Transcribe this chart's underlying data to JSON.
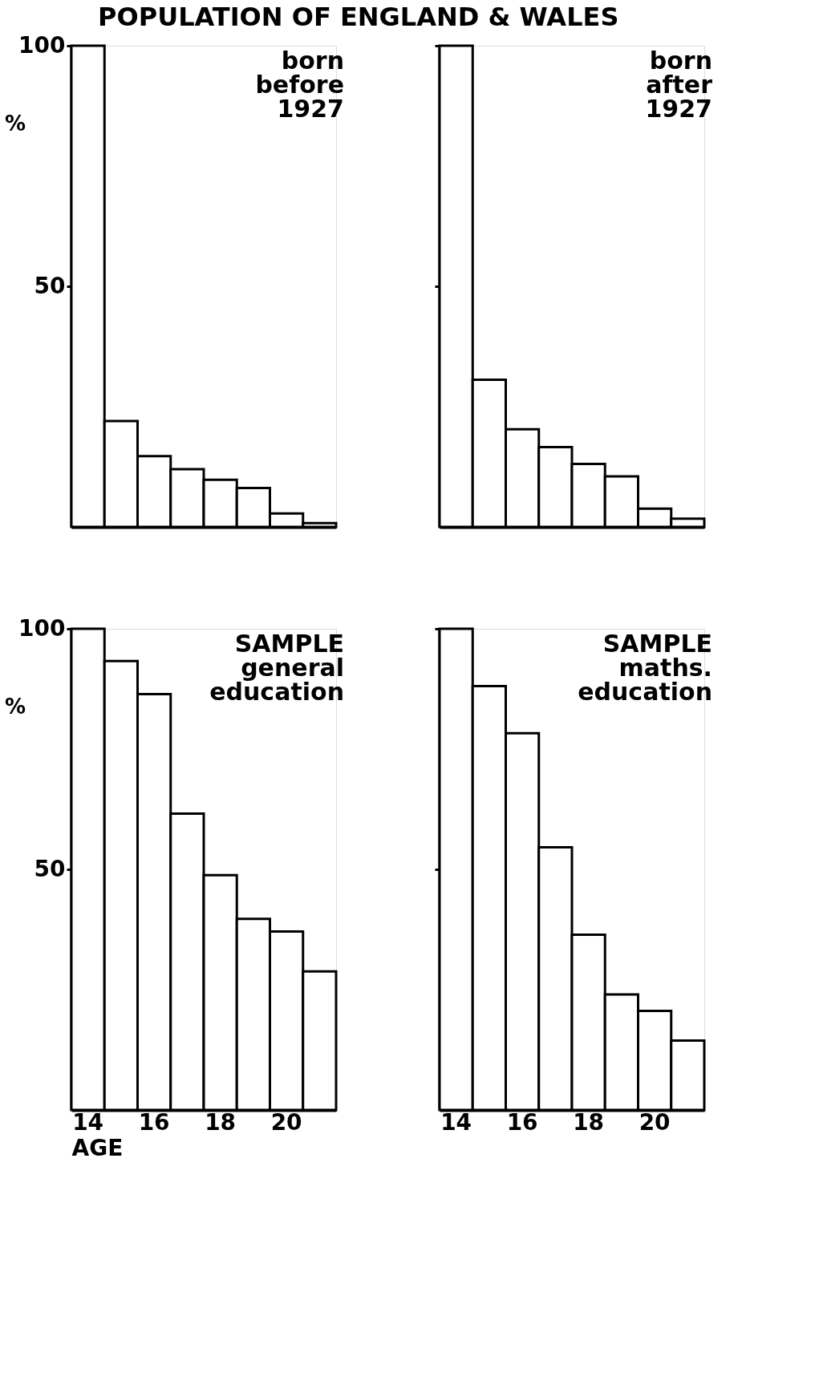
{
  "chart_data": [
    {
      "type": "bar",
      "title": "POPULATION OF ENGLAND & WALES",
      "ylabel": "%",
      "annotations": [
        "born before 1927"
      ],
      "categories": [
        "14",
        null,
        "16",
        null,
        "18",
        null,
        "20",
        null
      ],
      "color": "#ffffff",
      "values": [
        100,
        22,
        14.7,
        12,
        9.8,
        8.1,
        2.8,
        0.8
      ],
      "ylim": [
        0,
        100
      ],
      "yticks": [
        50,
        100
      ],
      "grid": false,
      "tick_labels": "y"
    },
    {
      "type": "bar",
      "annotations": [
        "born after 1927"
      ],
      "categories": [
        "14",
        null,
        "16",
        null,
        "18",
        null,
        "20",
        null
      ],
      "color": "#ffffff",
      "values": [
        100,
        30.6,
        20.3,
        16.6,
        13.1,
        10.5,
        3.8,
        1.7
      ],
      "ylim": [
        0,
        100
      ],
      "yticks": [
        50,
        100
      ],
      "grid": false,
      "tick_labels": false
    },
    {
      "type": "bar",
      "ylabel": "%",
      "xlabel": "AGE",
      "annotations": [
        "SAMPLE general education"
      ],
      "categories": [
        "14",
        null,
        "16",
        null,
        "18",
        null,
        "20",
        null
      ],
      "color": "#ffffff",
      "values": [
        100,
        93.3,
        86.4,
        61.6,
        48.8,
        39.7,
        37.1,
        28.8
      ],
      "ylim": [
        0,
        100
      ],
      "yticks": [
        50,
        100
      ],
      "grid": false
    },
    {
      "type": "bar",
      "annotations": [
        "SAMPLE maths. education"
      ],
      "categories": [
        "14",
        null,
        "16",
        null,
        "18",
        null,
        "20",
        null
      ],
      "color": "#ffffff",
      "values": [
        100,
        88.1,
        78.3,
        54.6,
        36.4,
        24,
        20.6,
        14.4
      ],
      "ylim": [
        0,
        100
      ],
      "yticks": [
        50,
        100
      ],
      "grid": false,
      "tick_labels": "x"
    }
  ]
}
